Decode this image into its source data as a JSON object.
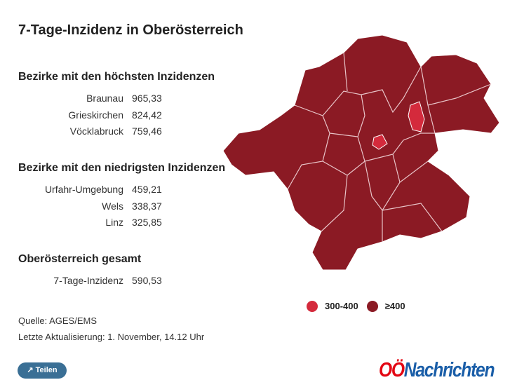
{
  "header": {
    "title": "7-Tage-Inzidenz in Oberösterreich"
  },
  "sections": [
    {
      "heading": "Bezirke mit den höchsten Inzidenzen",
      "rows": [
        [
          "Braunau",
          "965,33"
        ],
        [
          "Grieskirchen",
          "824,42"
        ],
        [
          "Vöcklabruck",
          "759,46"
        ]
      ]
    },
    {
      "heading": "Bezirke mit den niedrigsten Inzidenzen",
      "rows": [
        [
          "Urfahr-Umgebung",
          "459,21"
        ],
        [
          "Wels",
          "338,37"
        ],
        [
          "Linz",
          "325,85"
        ]
      ]
    },
    {
      "heading": "Oberösterreich gesamt",
      "rows": [
        [
          "7-Tage-Inzidenz",
          "590,53"
        ]
      ]
    }
  ],
  "legend": [
    {
      "label": "300-400",
      "color": "#d42a3c"
    },
    {
      "label": "≥400",
      "color": "#8b1a24"
    }
  ],
  "footer": {
    "source": "Quelle: AGES/EMS",
    "updated": "Letzte Aktualisierung: 1. November, 14.12 Uhr"
  },
  "share_button": "Teilen",
  "logo": {
    "part1": "OÖ",
    "part2": "Nachrichten"
  }
}
